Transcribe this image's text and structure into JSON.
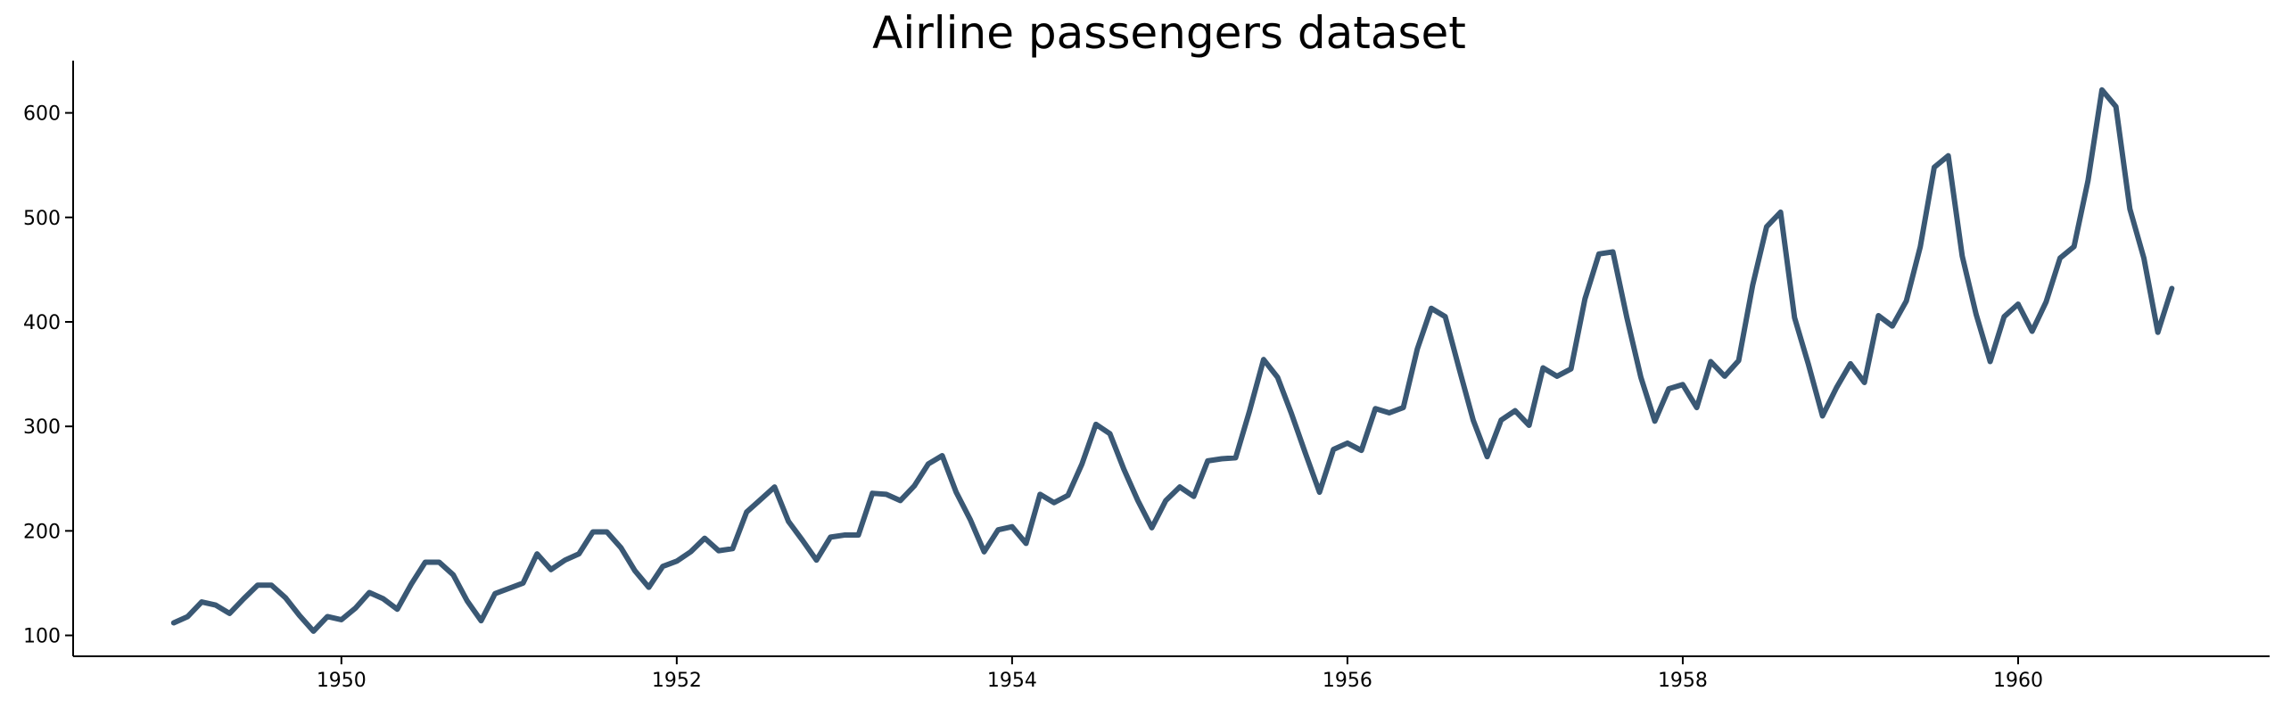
{
  "chart_data": {
    "type": "line",
    "title": "Airline passengers dataset",
    "xlabel": "",
    "ylabel": "",
    "xlim": [
      1948.4,
      1961.5
    ],
    "ylim": [
      80,
      650
    ],
    "x_ticks": [
      1950,
      1952,
      1954,
      1956,
      1958,
      1960
    ],
    "y_ticks": [
      100,
      200,
      300,
      400,
      500,
      600
    ],
    "grid": false,
    "legend": "none",
    "colors": {
      "line": "#3a5874",
      "axis": "#000000",
      "text": "#000000"
    },
    "x_start": "1949-01",
    "x_step": "1 month",
    "series": [
      {
        "values": [
          112,
          118,
          132,
          129,
          121,
          135,
          148,
          148,
          136,
          119,
          104,
          118,
          115,
          126,
          141,
          135,
          125,
          149,
          170,
          170,
          158,
          133,
          114,
          140,
          145,
          150,
          178,
          163,
          172,
          178,
          199,
          199,
          184,
          162,
          146,
          166,
          171,
          180,
          193,
          181,
          183,
          218,
          230,
          242,
          209,
          191,
          172,
          194,
          196,
          196,
          236,
          235,
          229,
          243,
          264,
          272,
          237,
          211,
          180,
          201,
          204,
          188,
          235,
          227,
          234,
          264,
          302,
          293,
          259,
          229,
          203,
          229,
          242,
          233,
          267,
          269,
          270,
          315,
          364,
          347,
          312,
          274,
          237,
          278,
          284,
          277,
          317,
          313,
          318,
          374,
          413,
          405,
          355,
          306,
          271,
          306,
          315,
          301,
          356,
          348,
          355,
          422,
          465,
          467,
          404,
          347,
          305,
          336,
          340,
          318,
          362,
          348,
          363,
          435,
          491,
          505,
          404,
          359,
          310,
          337,
          360,
          342,
          406,
          396,
          420,
          472,
          548,
          559,
          463,
          407,
          362,
          405,
          417,
          391,
          419,
          461,
          472,
          535,
          622,
          606,
          508,
          461,
          390,
          432
        ]
      }
    ]
  }
}
